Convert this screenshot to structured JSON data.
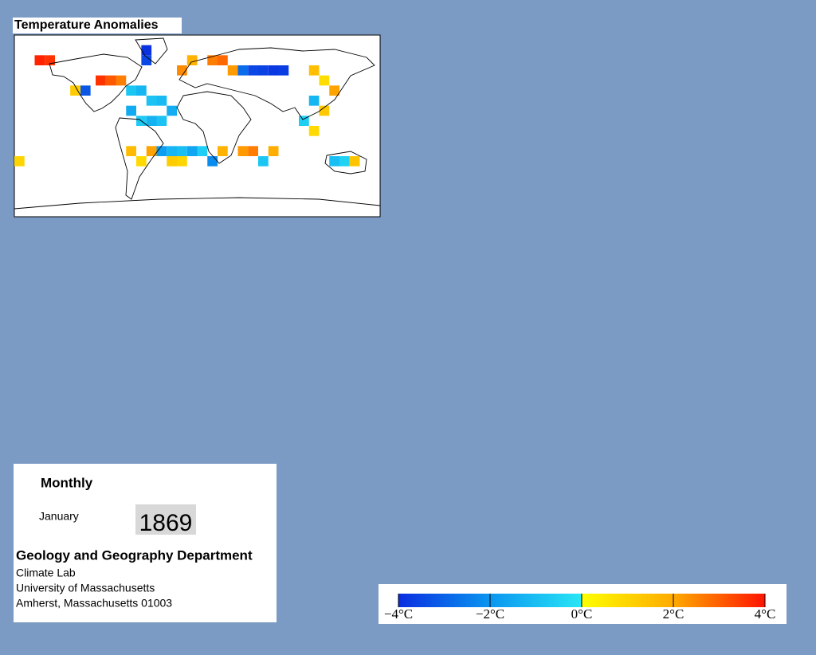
{
  "title": "Temperature Anomalies",
  "map": {
    "type": "heatmap",
    "cells": {
      "lon": [
        -155,
        -145,
        -50,
        -50,
        -95,
        -85,
        -75,
        -110,
        -120,
        -65,
        -55,
        -45,
        -35,
        -25,
        -65,
        -55,
        -45,
        -35,
        -25,
        -15,
        -5,
        5,
        15,
        25,
        35,
        45,
        55,
        65,
        75,
        85,
        -15,
        -5,
        115,
        125,
        135,
        115,
        125,
        105,
        115,
        -35,
        -25,
        -15,
        45,
        55,
        65,
        75,
        -65,
        -55,
        -45,
        135,
        145,
        155,
        -175,
        15,
        25
      ],
      "lat": [
        65,
        65,
        75,
        65,
        45,
        45,
        45,
        35,
        35,
        35,
        35,
        25,
        25,
        15,
        15,
        5,
        5,
        5,
        -25,
        -25,
        -25,
        -25,
        65,
        65,
        55,
        55,
        55,
        55,
        55,
        55,
        55,
        65,
        55,
        45,
        35,
        25,
        15,
        5,
        -5,
        -25,
        -35,
        -35,
        -25,
        -25,
        -35,
        -25,
        -25,
        -35,
        -25,
        -35,
        -35,
        -35,
        -35,
        -35,
        -25
      ],
      "values": [
        3.8,
        3.6,
        -3.9,
        -3.5,
        3.6,
        3.1,
        2.6,
        -3.2,
        1.2,
        -0.8,
        -1.2,
        -0.9,
        -1.1,
        -1.4,
        -1.5,
        -0.7,
        -1.3,
        -0.9,
        -1.2,
        -1.0,
        -1.6,
        -0.6,
        2.6,
        2.9,
        2.2,
        -2.8,
        -3.5,
        -3.6,
        -3.8,
        -3.7,
        2.4,
        1.8,
        1.5,
        0.8,
        2.1,
        -1.2,
        1.3,
        -0.6,
        0.9,
        -1.8,
        1.2,
        1.0,
        2.2,
        2.6,
        -0.8,
        1.9,
        1.6,
        0.9,
        2.1,
        -1.0,
        -0.5,
        1.4,
        1.0,
        -2.2,
        1.8
      ]
    }
  },
  "colorbar": {
    "type": "colorbar",
    "lim": [
      -4,
      4
    ],
    "ticks": [
      {
        "value": -4,
        "label": "−4°C"
      },
      {
        "value": -2,
        "label": "−2°C"
      },
      {
        "value": 0,
        "label": "0°C"
      },
      {
        "value": 2,
        "label": "2°C"
      },
      {
        "value": 4,
        "label": "4°C"
      }
    ],
    "colormap": [
      {
        "value": -4,
        "color": "#0a2de0"
      },
      {
        "value": -2,
        "color": "#0a96f0"
      },
      {
        "value": 0,
        "color": "#28e6f5"
      },
      {
        "value": 0,
        "color": "#ffff00"
      },
      {
        "value": 2,
        "color": "#ffaa00"
      },
      {
        "value": 4,
        "color": "#ff1400"
      }
    ]
  },
  "panel": {
    "period": "Monthly",
    "month": "January",
    "year": "1869",
    "department": "Geology and Geography Department",
    "lines": [
      "Climate Lab",
      "University of Massachusetts",
      "Amherst, Massachusetts 01003"
    ]
  }
}
